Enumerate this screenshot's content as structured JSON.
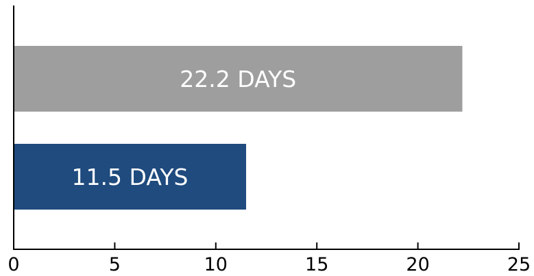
{
  "chart_data": {
    "type": "bar",
    "orientation": "horizontal",
    "title": "",
    "xlabel": "",
    "ylabel": "",
    "xlim": [
      0,
      25
    ],
    "x_ticks": [
      "0",
      "5",
      "10",
      "15",
      "20",
      "25"
    ],
    "grid": false,
    "bars": [
      {
        "value": 22.2,
        "label": "22.2 DAYS",
        "color": "#9d9e9d"
      },
      {
        "value": 11.5,
        "label": "11.5 DAYS",
        "color": "#1f4b7e"
      }
    ]
  }
}
